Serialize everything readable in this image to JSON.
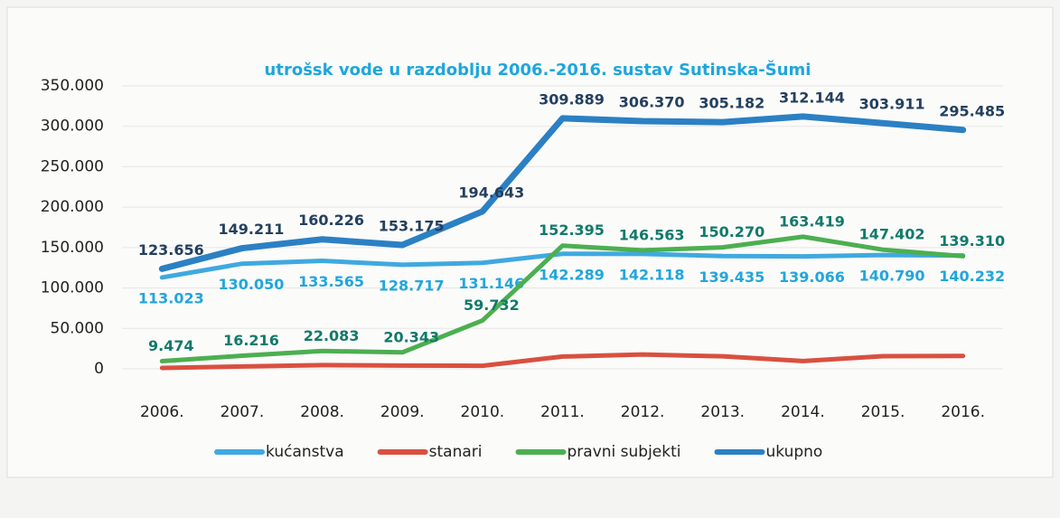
{
  "chart_data": {
    "type": "line",
    "title": "utrošsk vode u razdoblju 2006.-2016. sustav Sutinska-Šumi",
    "categories": [
      "2006.",
      "2007.",
      "2008.",
      "2009.",
      "2010.",
      "2011.",
      "2012.",
      "2013.",
      "2014.",
      "2015.",
      "2016."
    ],
    "series": [
      {
        "name": "kućanstva",
        "color": "#3fa9e0",
        "label_color": "#22a6dc",
        "values": [
          113023,
          130050,
          133565,
          128717,
          131146,
          142289,
          142118,
          139435,
          139066,
          140790,
          140232
        ],
        "value_labels": [
          "113.023",
          "130.050",
          "133.565",
          "128.717",
          "131.146",
          "142.289",
          "142.118",
          "139.435",
          "139.066",
          "140.790",
          "140.232"
        ]
      },
      {
        "name": "stanari",
        "color": "#d9503f",
        "values": [
          1159,
          2945,
          4578,
          4115,
          3765,
          15205,
          17689,
          15477,
          9659,
          15719,
          15943
        ]
      },
      {
        "name": "pravni subjekti",
        "color": "#4caf50",
        "label_color": "#127a6a",
        "values": [
          9474,
          16216,
          22083,
          20343,
          59732,
          152395,
          146563,
          150270,
          163419,
          147402,
          139310
        ],
        "value_labels": [
          "9.474",
          "16.216",
          "22.083",
          "20.343",
          "59.732",
          "152.395",
          "146.563",
          "150.270",
          "163.419",
          "147.402",
          "139.310"
        ]
      },
      {
        "name": "ukupno",
        "color": "#2b80c4",
        "label_color": "#24405e",
        "values": [
          123656,
          149211,
          160226,
          153175,
          194643,
          309889,
          306370,
          305182,
          312144,
          303911,
          295485
        ],
        "value_labels": [
          "123.656",
          "149.211",
          "160.226",
          "153.175",
          "194.643",
          "309.889",
          "306.370",
          "305.182",
          "312.144",
          "303.911",
          "295.485"
        ]
      }
    ],
    "ylim": [
      0,
      350000
    ],
    "yticks": [
      0,
      {
        "value": 50000,
        "label": "50.000"
      },
      {
        "value": 100000,
        "label": "100.000"
      },
      {
        "value": 150000,
        "label": "150.000"
      },
      {
        "value": 200000,
        "label": "200.000"
      },
      {
        "value": 250000,
        "label": "250.000"
      },
      {
        "value": 300000,
        "label": "300.000"
      },
      {
        "value": 350000,
        "label": "350.000"
      }
    ],
    "grid": true,
    "legend": "bottom"
  }
}
